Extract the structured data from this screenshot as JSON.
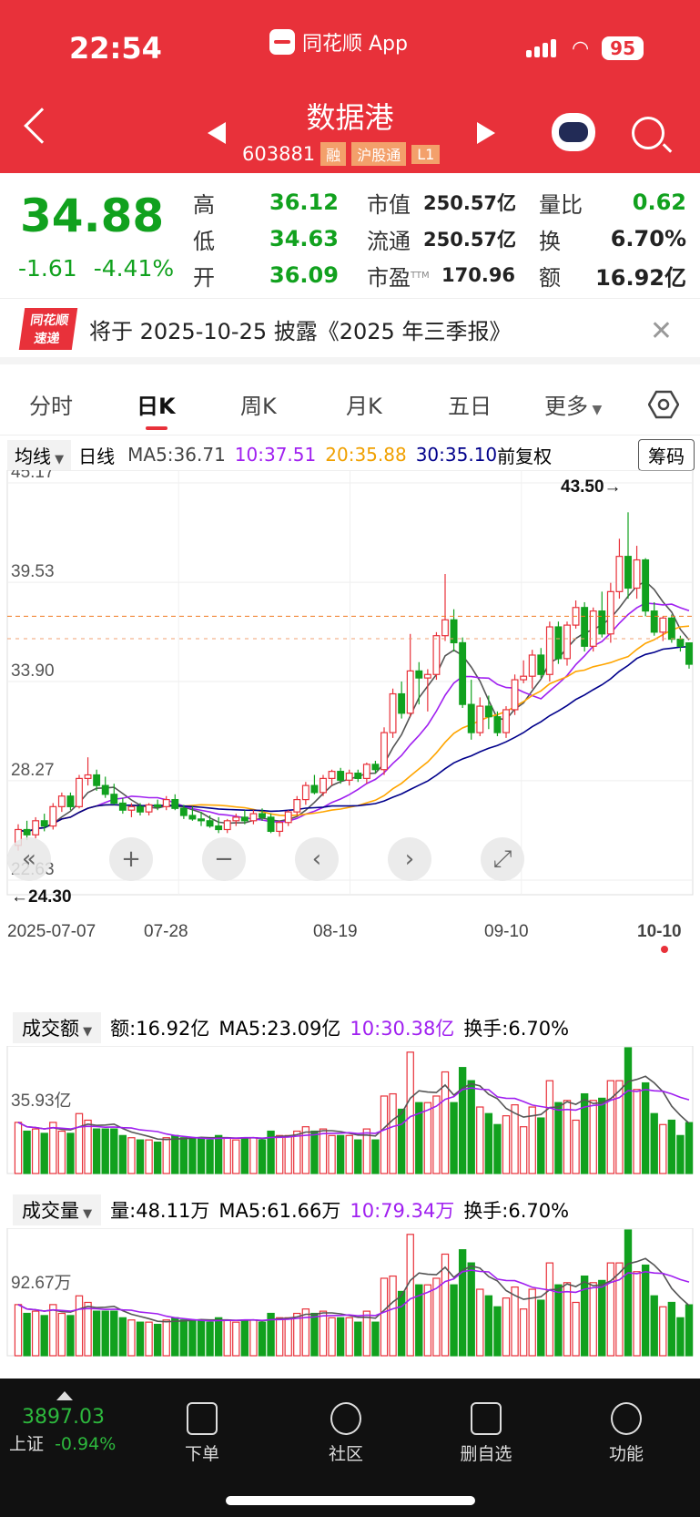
{
  "status_bar": {
    "time": "22:54",
    "app_name": "同花顺 App",
    "battery": "95"
  },
  "header": {
    "stock_name": "数据港",
    "stock_code": "603881",
    "tags": [
      "融",
      "沪股通",
      "L1"
    ]
  },
  "quote": {
    "price": "34.88",
    "change": "-1.61",
    "change_pct": "-4.41%",
    "rows": [
      {
        "k1": "高",
        "v1": "36.12",
        "k2": "市值",
        "v2": "250.57亿",
        "k3": "量比",
        "v3": "0.62"
      },
      {
        "k1": "低",
        "v1": "34.63",
        "k2": "流通",
        "v2": "250.57亿",
        "k3": "换",
        "v3": "6.70%"
      },
      {
        "k1": "开",
        "v1": "36.09",
        "k2": "市盈",
        "k2sup": "TTM",
        "v2": "170.96",
        "k3": "额",
        "v3": "16.92亿"
      }
    ]
  },
  "notice": {
    "logo_line1": "同花顺",
    "logo_line2": "速递",
    "text": "将于 2025-10-25 披露《2025 年三季报》"
  },
  "tabs": [
    "分时",
    "日K",
    "周K",
    "月K",
    "五日",
    "更多"
  ],
  "ma_bar": {
    "selector": "均线",
    "period": "日线",
    "ma5": "MA5:36.71",
    "ma10": "10:37.51",
    "ma20": "20:35.88",
    "ma30": "30:35.10",
    "adjust": "前复权",
    "chips": "筹码"
  },
  "kline": {
    "y_labels": [
      "45.17",
      "39.53",
      "33.90",
      "28.27",
      "22.63"
    ],
    "high_marker": "43.50→",
    "low_marker": "←24.30",
    "x_labels": [
      "2025-07-07",
      "07-28",
      "08-19",
      "09-10",
      "10-10"
    ]
  },
  "turnover": {
    "selector": "成交额",
    "amount": "额:16.92亿",
    "ma5": "MA5:23.09亿",
    "ma10": "10:30.38亿",
    "rate": "换手:6.70%",
    "axis_label": "35.93亿"
  },
  "volume": {
    "selector": "成交量",
    "amount": "量:48.11万",
    "ma5": "MA5:61.66万",
    "ma10": "10:79.34万",
    "rate": "换手:6.70%",
    "axis_label": "92.67万"
  },
  "bottom_nav": {
    "index_value": "3897.03",
    "index_name": "上证",
    "index_change": "-0.94%",
    "items": [
      "下单",
      "社区",
      "删自选",
      "功能"
    ]
  },
  "colors": {
    "up": "#e8313a",
    "down": "#11a11e",
    "ma5": "#555555",
    "ma10": "#a020f0",
    "ma20": "#ffa500",
    "ma30": "#00008b"
  },
  "chart_data": {
    "type": "candlestick",
    "title": "数据港 日K",
    "x_range": [
      "2025-07-07",
      "2025-10-10"
    ],
    "ylim": [
      22.63,
      45.17
    ],
    "candles": [
      [
        24.6,
        25.8,
        24.3,
        25.5
      ],
      [
        25.5,
        26.0,
        24.9,
        25.2
      ],
      [
        25.2,
        26.2,
        25.0,
        26.0
      ],
      [
        26.0,
        26.4,
        25.4,
        25.7
      ],
      [
        25.7,
        27.0,
        25.5,
        26.8
      ],
      [
        26.8,
        27.6,
        26.5,
        27.4
      ],
      [
        27.4,
        27.6,
        26.6,
        26.8
      ],
      [
        26.8,
        28.6,
        26.7,
        28.4
      ],
      [
        28.4,
        29.6,
        28.0,
        28.6
      ],
      [
        28.6,
        28.9,
        27.7,
        28.0
      ],
      [
        28.0,
        28.5,
        27.3,
        27.5
      ],
      [
        27.5,
        28.1,
        26.9,
        27.0
      ],
      [
        27.0,
        27.3,
        26.4,
        26.6
      ],
      [
        26.6,
        27.0,
        26.2,
        26.8
      ],
      [
        26.8,
        27.0,
        26.3,
        26.5
      ],
      [
        26.5,
        27.0,
        26.3,
        26.9
      ],
      [
        26.9,
        27.2,
        26.6,
        26.8
      ],
      [
        26.8,
        27.4,
        26.6,
        27.2
      ],
      [
        27.2,
        27.5,
        26.6,
        26.7
      ],
      [
        26.7,
        26.9,
        26.1,
        26.3
      ],
      [
        26.3,
        26.8,
        26.0,
        26.1
      ],
      [
        26.1,
        26.5,
        25.7,
        26.0
      ],
      [
        26.0,
        26.3,
        25.6,
        25.7
      ],
      [
        25.7,
        26.2,
        25.3,
        25.5
      ],
      [
        25.5,
        26.1,
        25.3,
        26.0
      ],
      [
        26.0,
        26.4,
        25.7,
        26.2
      ],
      [
        26.2,
        26.6,
        25.8,
        26.0
      ],
      [
        26.0,
        26.6,
        25.8,
        26.4
      ],
      [
        26.4,
        26.7,
        26.0,
        26.2
      ],
      [
        26.2,
        26.4,
        25.3,
        25.4
      ],
      [
        25.4,
        26.0,
        25.1,
        25.9
      ],
      [
        25.9,
        26.6,
        25.7,
        26.5
      ],
      [
        26.5,
        27.4,
        26.3,
        27.2
      ],
      [
        27.2,
        28.2,
        26.9,
        28.0
      ],
      [
        28.0,
        28.6,
        27.5,
        27.6
      ],
      [
        27.6,
        28.6,
        27.4,
        28.4
      ],
      [
        28.4,
        28.9,
        28.0,
        28.8
      ],
      [
        28.8,
        29.0,
        28.1,
        28.3
      ],
      [
        28.3,
        28.9,
        28.0,
        28.7
      ],
      [
        28.7,
        28.9,
        28.2,
        28.4
      ],
      [
        28.4,
        29.3,
        28.1,
        29.2
      ],
      [
        29.2,
        29.4,
        28.7,
        28.9
      ],
      [
        28.9,
        31.3,
        28.6,
        31.0
      ],
      [
        31.0,
        33.5,
        30.7,
        33.2
      ],
      [
        33.2,
        33.9,
        31.8,
        32.1
      ],
      [
        32.1,
        36.6,
        31.9,
        34.5
      ],
      [
        34.5,
        35.0,
        32.6,
        34.1
      ],
      [
        34.1,
        34.6,
        32.2,
        34.3
      ],
      [
        34.3,
        36.7,
        34.0,
        36.5
      ],
      [
        36.5,
        40.0,
        36.2,
        37.4
      ],
      [
        37.4,
        38.0,
        35.6,
        36.1
      ],
      [
        36.1,
        36.4,
        32.4,
        32.6
      ],
      [
        32.6,
        34.0,
        30.6,
        31.0
      ],
      [
        31.0,
        33.0,
        30.8,
        32.5
      ],
      [
        32.5,
        33.1,
        31.2,
        31.9
      ],
      [
        31.9,
        32.2,
        30.8,
        31.0
      ],
      [
        31.0,
        32.5,
        30.7,
        32.3
      ],
      [
        32.3,
        34.3,
        32.0,
        34.0
      ],
      [
        34.0,
        35.1,
        33.8,
        34.2
      ],
      [
        34.2,
        35.7,
        33.5,
        35.4
      ],
      [
        35.4,
        35.8,
        34.1,
        34.3
      ],
      [
        34.3,
        37.3,
        33.9,
        37.0
      ],
      [
        37.0,
        37.3,
        34.9,
        35.2
      ],
      [
        35.2,
        37.3,
        34.8,
        37.1
      ],
      [
        37.1,
        38.5,
        36.9,
        38.1
      ],
      [
        38.1,
        38.4,
        35.6,
        35.9
      ],
      [
        35.9,
        38.1,
        35.6,
        37.9
      ],
      [
        37.9,
        39.0,
        36.4,
        36.6
      ],
      [
        36.6,
        39.5,
        36.1,
        39.0
      ],
      [
        39.0,
        42.0,
        38.6,
        41.0
      ],
      [
        41.0,
        43.5,
        38.6,
        39.2
      ],
      [
        39.2,
        41.6,
        38.6,
        40.8
      ],
      [
        40.8,
        40.9,
        37.6,
        37.9
      ],
      [
        37.9,
        38.4,
        36.5,
        36.7
      ],
      [
        36.7,
        37.6,
        36.2,
        37.5
      ],
      [
        37.5,
        37.7,
        36.1,
        36.3
      ],
      [
        36.3,
        36.5,
        35.6,
        35.9
      ],
      [
        36.09,
        36.12,
        34.63,
        34.88
      ]
    ]
  }
}
